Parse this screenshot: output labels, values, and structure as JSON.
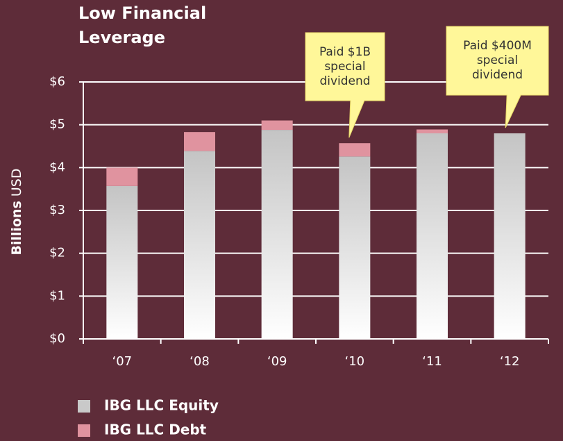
{
  "chart_data": {
    "type": "stacked_bar",
    "title": [
      "Low Financial",
      "Leverage"
    ],
    "y_label": [
      "Billions",
      "USD"
    ],
    "categories": [
      "‘07",
      "‘08",
      "‘09",
      "‘10",
      "‘11",
      "‘12"
    ],
    "series": [
      {
        "name": "IBG LLC Equity",
        "color": "#c9c9c9",
        "values": [
          3.57,
          4.39,
          4.88,
          4.26,
          4.8,
          4.8
        ]
      },
      {
        "name": "IBG LLC Debt",
        "color": "#e0939f",
        "values": [
          0.43,
          0.44,
          0.22,
          0.31,
          0.09,
          0
        ]
      }
    ],
    "ylim": [
      0,
      6
    ],
    "yticks": [
      {
        "value": 0,
        "label": "$0"
      },
      {
        "value": 1,
        "label": "$1"
      },
      {
        "value": 2,
        "label": "$2"
      },
      {
        "value": 3,
        "label": "$3"
      },
      {
        "value": 4,
        "label": "$4"
      },
      {
        "value": 5,
        "label": "$5"
      },
      {
        "value": 6,
        "label": "$6"
      }
    ],
    "grid": true,
    "annotations": [
      {
        "lines": [
          "Paid $1B",
          "special",
          "dividend"
        ],
        "category": 3
      },
      {
        "lines": [
          "Paid $400M",
          "special",
          "dividend"
        ],
        "category": 5
      }
    ]
  }
}
